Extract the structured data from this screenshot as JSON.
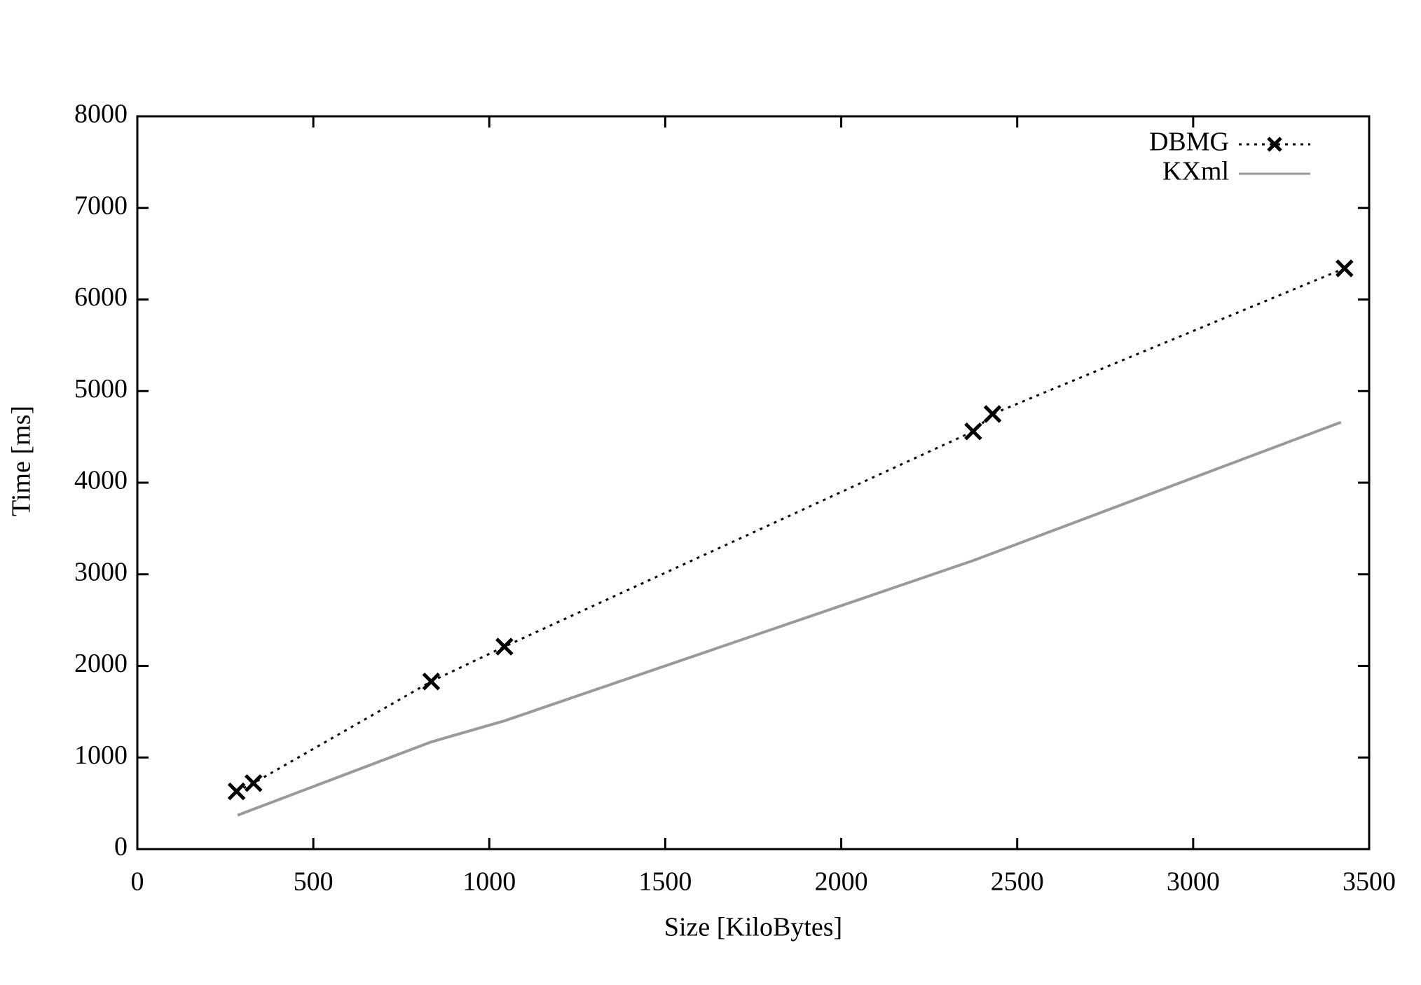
{
  "chart_data": {
    "type": "line",
    "xlabel": "Size [KiloBytes]",
    "ylabel": "Time [ms]",
    "xlim": [
      0,
      3500
    ],
    "xticks": [
      0,
      500,
      1000,
      1500,
      2000,
      2500,
      3000,
      3500
    ],
    "ylim": [
      0,
      8000
    ],
    "yticks": [
      0,
      1000,
      2000,
      3000,
      4000,
      5000,
      6000,
      7000,
      8000
    ],
    "legend": "top-right",
    "series": [
      {
        "name": "DBMG",
        "color": "#000000",
        "dash": "dotted",
        "marker": "x",
        "x": [
          282,
          330,
          835,
          1043,
          2375,
          2430,
          3430
        ],
        "values": [
          630,
          720,
          1830,
          2210,
          4560,
          4750,
          6340
        ]
      },
      {
        "name": "KXml",
        "color": "#9a9a9a",
        "dash": "solid",
        "marker": "none",
        "x": [
          285,
          835,
          1043,
          2375,
          3420
        ],
        "values": [
          370,
          1170,
          1400,
          3150,
          4660
        ]
      }
    ]
  }
}
